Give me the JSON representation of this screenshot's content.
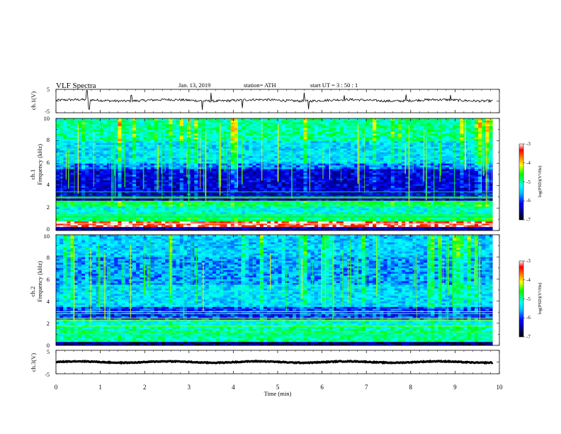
{
  "header": {
    "title": "VLF  Spectra",
    "date": "Jan.  13,  2019",
    "station": "station= ATH",
    "start": "start  UT  =    3  : 50 : 1"
  },
  "colors": {
    "colormap": [
      "#000000",
      "#000080",
      "#0000ff",
      "#00bfff",
      "#00ffff",
      "#00ff80",
      "#00ff00",
      "#ffff00",
      "#ff8000",
      "#ff0000",
      "#ffffff"
    ]
  },
  "chart_data": [
    {
      "id": "ch1-waveform",
      "type": "line",
      "ylabel": "ch.1(V)",
      "ylim": [
        -5,
        5
      ],
      "y_ticks": [
        "5",
        "-5"
      ],
      "xlim": [
        0,
        10
      ],
      "baseline": 0.3,
      "noise_amplitude": 1.0,
      "spikes": [
        [
          0.7,
          4.5
        ],
        [
          0.75,
          -3.5
        ],
        [
          1.7,
          2.5
        ],
        [
          3.3,
          -3.8
        ],
        [
          3.5,
          3.5
        ],
        [
          4.2,
          -3.0
        ],
        [
          5.6,
          3.6
        ],
        [
          5.7,
          -3.5
        ],
        [
          6.5,
          2.4
        ],
        [
          7.9,
          2.8
        ],
        [
          8.9,
          2.6
        ]
      ]
    },
    {
      "id": "ch1-spectrogram",
      "type": "heatmap",
      "ylabel": "Frequency  (kHz)",
      "channel_label": "ch.1",
      "y_ticks": [
        "0",
        "2",
        "4",
        "6",
        "8",
        "10"
      ],
      "xlim": [
        0,
        9.85
      ],
      "ylim": [
        0,
        10
      ],
      "time_bins": 120,
      "freq_bins": 60,
      "band_levels": [
        {
          "from": 0.0,
          "to": 0.35,
          "level": 0.15
        },
        {
          "from": 0.35,
          "to": 0.9,
          "level": 0.95
        },
        {
          "from": 0.9,
          "to": 1.2,
          "level": 0.55
        },
        {
          "from": 1.2,
          "to": 2.2,
          "level": 0.45
        },
        {
          "from": 2.2,
          "to": 2.7,
          "level": 0.55
        },
        {
          "from": 2.7,
          "to": 5.5,
          "level": 0.18
        },
        {
          "from": 5.5,
          "to": 6.0,
          "level": 0.3
        },
        {
          "from": 6.0,
          "to": 8.0,
          "level": 0.4
        },
        {
          "from": 8.0,
          "to": 10.0,
          "level": 0.5
        }
      ],
      "colorbar": {
        "label": "log(PSD)(V²/Hz)",
        "ticks": [
          "-3",
          "-4",
          "-5",
          "-6",
          "-7"
        ],
        "range": [
          -7,
          -3
        ]
      }
    },
    {
      "id": "ch2-spectrogram",
      "type": "heatmap",
      "ylabel": "Frequency  (kHz)",
      "channel_label": "ch.2",
      "y_ticks": [
        "0",
        "2",
        "4",
        "6",
        "8",
        "10"
      ],
      "xlim": [
        0,
        9.85
      ],
      "ylim": [
        0,
        10
      ],
      "time_bins": 120,
      "freq_bins": 60,
      "band_levels": [
        {
          "from": 0.0,
          "to": 0.3,
          "level": 0.1
        },
        {
          "from": 0.3,
          "to": 1.8,
          "level": 0.5
        },
        {
          "from": 1.8,
          "to": 2.3,
          "level": 0.45
        },
        {
          "from": 2.3,
          "to": 3.5,
          "level": 0.25
        },
        {
          "from": 3.5,
          "to": 5.5,
          "level": 0.4
        },
        {
          "from": 5.5,
          "to": 8.0,
          "level": 0.33
        },
        {
          "from": 8.0,
          "to": 10.0,
          "level": 0.38
        }
      ],
      "colorbar": {
        "label": "log(PSD)(V²/Hz)",
        "ticks": [
          "-3",
          "-4",
          "-5",
          "-6",
          "-7"
        ],
        "range": [
          -7,
          -3
        ]
      }
    },
    {
      "id": "ch3-waveform",
      "type": "line",
      "ylabel": "ch.3(V)",
      "ylim": [
        -5,
        5
      ],
      "y_ticks": [
        "5",
        "-5"
      ],
      "xlim": [
        0,
        10
      ],
      "baseline": 0.0,
      "noise_amplitude": 0.35,
      "spikes": []
    }
  ],
  "xaxis": {
    "label": "Time  (min)",
    "ticks": [
      "0",
      "1",
      "2",
      "3",
      "4",
      "5",
      "6",
      "7",
      "8",
      "9",
      "10"
    ]
  }
}
